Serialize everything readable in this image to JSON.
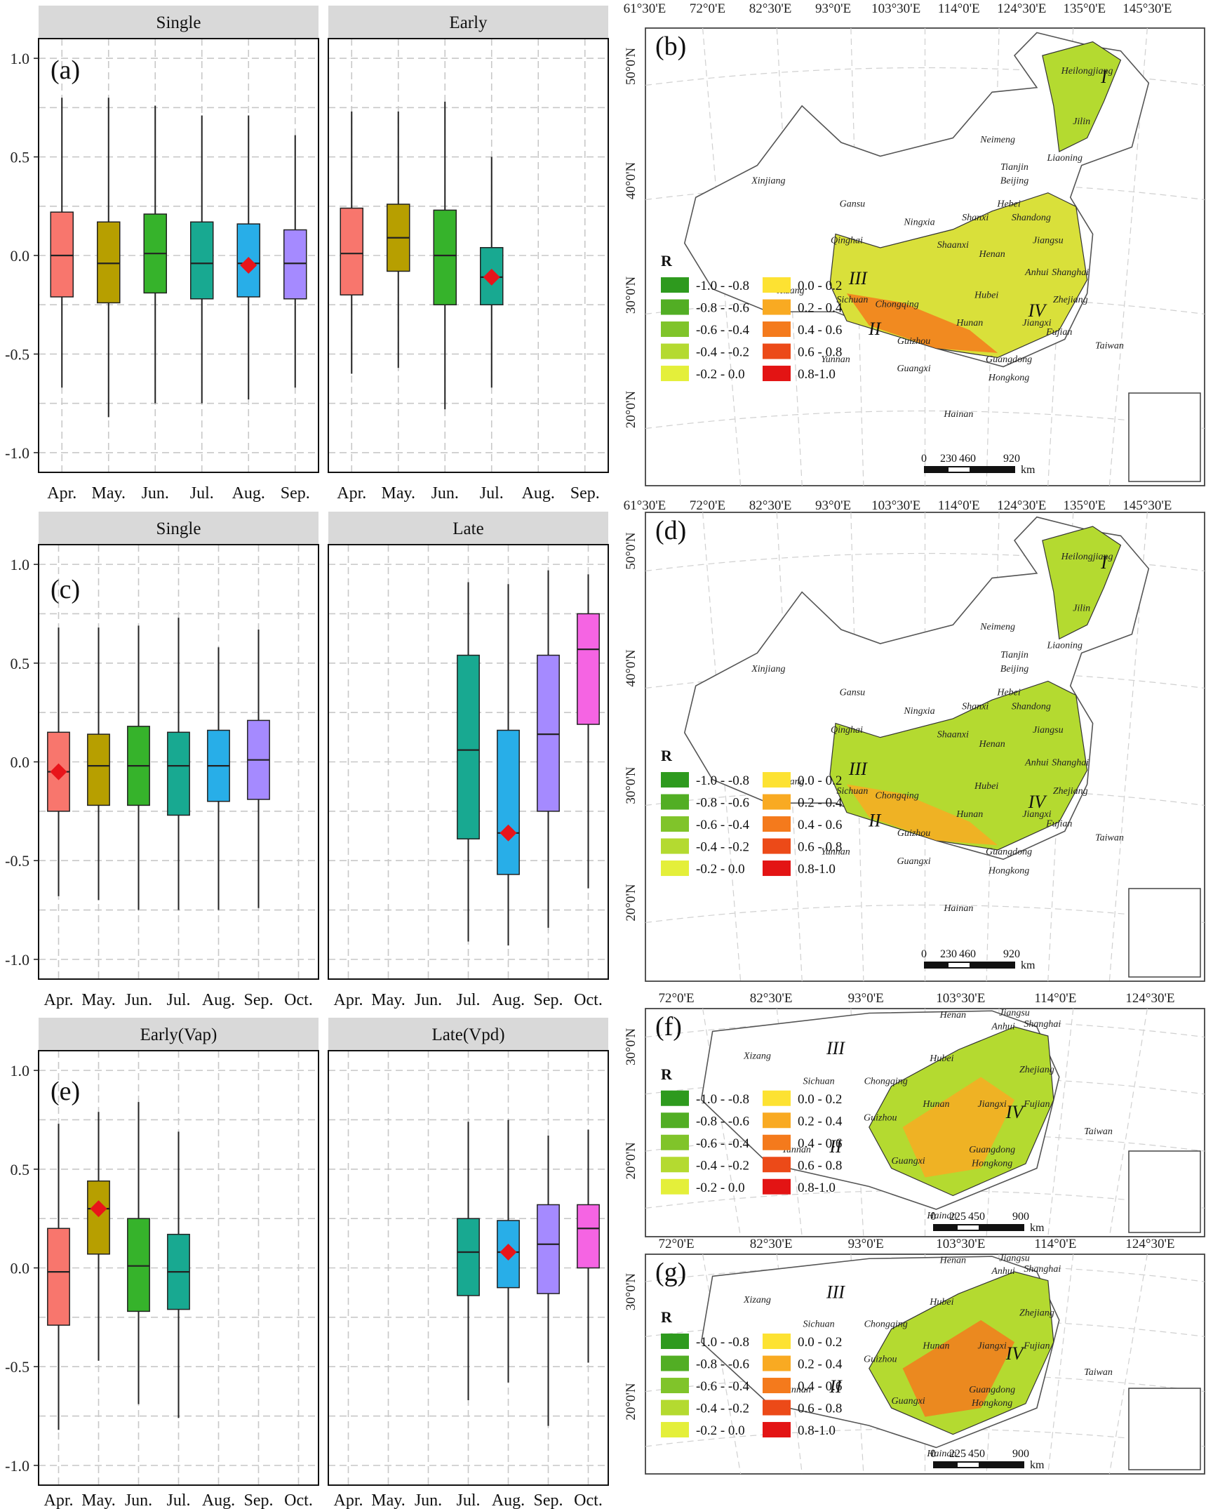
{
  "months_ab": [
    "Apr.",
    "May.",
    "Jun.",
    "Jul.",
    "Aug.",
    "Sep."
  ],
  "months_cdef": [
    "Apr.",
    "May.",
    "Jun.",
    "Jul.",
    "Aug.",
    "Sep.",
    "Oct."
  ],
  "y_ticks": [
    "1.0",
    "0.5",
    "0.0",
    "-0.5",
    "-1.0"
  ],
  "colors": {
    "Apr.": "#f8766d",
    "May.": "#b79f00",
    "Jun.": "#36b32b",
    "Jul.": "#18a991",
    "Aug.": "#28aee8",
    "Sep.": "#a58aff",
    "Oct.": "#f564e3",
    "highlight": "#e8141a",
    "strip": "#d9d9d9",
    "grid": "#c8c8c8"
  },
  "chart_data": [
    {
      "panel": "(a)",
      "type": "boxplot",
      "ylim": [
        -1.1,
        1.1
      ],
      "facets": [
        {
          "title": "Single",
          "categories": [
            "Apr.",
            "May.",
            "Jun.",
            "Jul.",
            "Aug.",
            "Sep."
          ],
          "boxes": [
            {
              "cat": "Apr.",
              "min": -0.67,
              "q1": -0.21,
              "median": 0.0,
              "q3": 0.22,
              "max": 0.8
            },
            {
              "cat": "May.",
              "min": -0.82,
              "q1": -0.24,
              "median": -0.04,
              "q3": 0.17,
              "max": 0.8
            },
            {
              "cat": "Jun.",
              "min": -0.75,
              "q1": -0.19,
              "median": 0.01,
              "q3": 0.21,
              "max": 0.76
            },
            {
              "cat": "Jul.",
              "min": -0.75,
              "q1": -0.22,
              "median": -0.04,
              "q3": 0.17,
              "max": 0.71
            },
            {
              "cat": "Aug.",
              "min": -0.73,
              "q1": -0.21,
              "median": -0.04,
              "q3": 0.16,
              "max": 0.71,
              "highlight": -0.05
            },
            {
              "cat": "Sep.",
              "min": -0.67,
              "q1": -0.22,
              "median": -0.04,
              "q3": 0.13,
              "max": 0.61
            }
          ]
        },
        {
          "title": "Early",
          "categories": [
            "Apr.",
            "May.",
            "Jun.",
            "Jul.",
            "Aug.",
            "Sep."
          ],
          "boxes": [
            {
              "cat": "Apr.",
              "min": -0.6,
              "q1": -0.2,
              "median": 0.01,
              "q3": 0.24,
              "max": 0.73
            },
            {
              "cat": "May.",
              "min": -0.57,
              "q1": -0.08,
              "median": 0.09,
              "q3": 0.26,
              "max": 0.73
            },
            {
              "cat": "Jun.",
              "min": -0.78,
              "q1": -0.25,
              "median": 0.0,
              "q3": 0.23,
              "max": 0.78
            },
            {
              "cat": "Jul.",
              "min": -0.67,
              "q1": -0.25,
              "median": -0.11,
              "q3": 0.04,
              "max": 0.5,
              "highlight": -0.11
            }
          ]
        }
      ]
    },
    {
      "panel": "(c)",
      "type": "boxplot",
      "ylim": [
        -1.1,
        1.1
      ],
      "facets": [
        {
          "title": "Single",
          "categories": [
            "Apr.",
            "May.",
            "Jun.",
            "Jul.",
            "Aug.",
            "Sep.",
            "Oct."
          ],
          "boxes": [
            {
              "cat": "Apr.",
              "min": -0.68,
              "q1": -0.25,
              "median": -0.05,
              "q3": 0.15,
              "max": 0.68,
              "highlight": -0.05
            },
            {
              "cat": "May.",
              "min": -0.7,
              "q1": -0.22,
              "median": -0.02,
              "q3": 0.14,
              "max": 0.68
            },
            {
              "cat": "Jun.",
              "min": -0.75,
              "q1": -0.22,
              "median": -0.02,
              "q3": 0.18,
              "max": 0.69
            },
            {
              "cat": "Jul.",
              "min": -0.75,
              "q1": -0.27,
              "median": -0.02,
              "q3": 0.15,
              "max": 0.73
            },
            {
              "cat": "Aug.",
              "min": -0.75,
              "q1": -0.2,
              "median": -0.02,
              "q3": 0.16,
              "max": 0.58
            },
            {
              "cat": "Sep.",
              "min": -0.74,
              "q1": -0.19,
              "median": 0.01,
              "q3": 0.21,
              "max": 0.67
            }
          ]
        },
        {
          "title": "Late",
          "categories": [
            "Apr.",
            "May.",
            "Jun.",
            "Jul.",
            "Aug.",
            "Sep.",
            "Oct."
          ],
          "boxes": [
            {
              "cat": "Jul.",
              "min": -0.91,
              "q1": -0.39,
              "median": 0.06,
              "q3": 0.54,
              "max": 0.91
            },
            {
              "cat": "Aug.",
              "min": -0.93,
              "q1": -0.57,
              "median": -0.36,
              "q3": 0.16,
              "max": 0.9,
              "highlight": -0.36
            },
            {
              "cat": "Sep.",
              "min": -0.84,
              "q1": -0.25,
              "median": 0.14,
              "q3": 0.54,
              "max": 0.97
            },
            {
              "cat": "Oct.",
              "min": -0.64,
              "q1": 0.19,
              "median": 0.57,
              "q3": 0.75,
              "max": 0.95
            }
          ]
        }
      ]
    },
    {
      "panel": "(e)",
      "type": "boxplot",
      "ylim": [
        -1.1,
        1.1
      ],
      "facets": [
        {
          "title": "Early(Vap)",
          "categories": [
            "Apr.",
            "May.",
            "Jun.",
            "Jul.",
            "Aug.",
            "Sep.",
            "Oct."
          ],
          "boxes": [
            {
              "cat": "Apr.",
              "min": -0.82,
              "q1": -0.29,
              "median": -0.02,
              "q3": 0.2,
              "max": 0.73
            },
            {
              "cat": "May.",
              "min": -0.47,
              "q1": 0.07,
              "median": 0.3,
              "q3": 0.44,
              "max": 0.79,
              "highlight": 0.3
            },
            {
              "cat": "Jun.",
              "min": -0.69,
              "q1": -0.22,
              "median": 0.01,
              "q3": 0.25,
              "max": 0.84
            },
            {
              "cat": "Jul.",
              "min": -0.76,
              "q1": -0.21,
              "median": -0.02,
              "q3": 0.17,
              "max": 0.69
            }
          ]
        },
        {
          "title": "Late(Vpd)",
          "categories": [
            "Apr.",
            "May.",
            "Jun.",
            "Jul.",
            "Aug.",
            "Sep.",
            "Oct."
          ],
          "boxes": [
            {
              "cat": "Jul.",
              "min": -0.67,
              "q1": -0.14,
              "median": 0.08,
              "q3": 0.25,
              "max": 0.74
            },
            {
              "cat": "Aug.",
              "min": -0.58,
              "q1": -0.1,
              "median": 0.08,
              "q3": 0.24,
              "max": 0.75,
              "highlight": 0.08
            },
            {
              "cat": "Sep.",
              "min": -0.8,
              "q1": -0.13,
              "median": 0.12,
              "q3": 0.32,
              "max": 0.67
            },
            {
              "cat": "Oct.",
              "min": -0.48,
              "q1": 0.0,
              "median": 0.2,
              "q3": 0.32,
              "max": 0.7
            }
          ]
        }
      ]
    }
  ],
  "maps": [
    {
      "label": "(b)",
      "top_lon": [
        "61°30'E",
        "72°0'E",
        "82°30'E",
        "93°0'E",
        "103°30'E",
        "114°0'E",
        "124°30'E",
        "135°0'E",
        "145°30'E"
      ],
      "lat": [
        "50°0'N",
        "40°0'N",
        "30°0'N",
        "20°0'N"
      ],
      "scale": [
        "0",
        "230",
        "460",
        "920"
      ],
      "scale_unit": "km"
    },
    {
      "label": "(d)",
      "top_lon": [
        "61°30'E",
        "72°0'E",
        "82°30'E",
        "93°0'E",
        "103°30'E",
        "114°0'E",
        "124°30'E",
        "135°0'E",
        "145°30'E"
      ],
      "lat": [
        "50°0'N",
        "40°0'N",
        "30°0'N",
        "20°0'N"
      ],
      "scale": [
        "0",
        "230",
        "460",
        "920"
      ],
      "scale_unit": "km"
    },
    {
      "label": "(f)",
      "top_lon": [
        "72°0'E",
        "82°30'E",
        "93°0'E",
        "103°30'E",
        "114°0'E",
        "124°30'E"
      ],
      "lat": [
        "30°0'N",
        "20°0'N"
      ],
      "scale": [
        "0",
        "225",
        "450",
        "900"
      ],
      "scale_unit": "km"
    },
    {
      "label": "(g)",
      "top_lon": [
        "72°0'E",
        "82°30'E",
        "93°0'E",
        "103°30'E",
        "114°0'E",
        "124°30'E"
      ],
      "lat": [
        "30°0'N",
        "20°0'N"
      ],
      "scale": [
        "0",
        "225",
        "450",
        "900"
      ],
      "scale_unit": "km"
    }
  ],
  "provinces_full": [
    "Heilongjiang",
    "Jilin",
    "Liaoning",
    "Neimeng",
    "Tianjin",
    "Beijing",
    "Xinjiang",
    "Gansu",
    "Hebei",
    "Ningxia",
    "Shanxi",
    "Shandong",
    "Qinghai",
    "Shaanxi",
    "Henan",
    "Jiangsu",
    "Anhui",
    "Shanghai",
    "Xizang",
    "Sichuan",
    "Chongqing",
    "Hubei",
    "Zhejiang",
    "Hunan",
    "Jiangxi",
    "Guizhou",
    "Fujian",
    "Yunnan",
    "Guangxi",
    "Guangdong",
    "Hongkong",
    "Taiwan",
    "Hainan"
  ],
  "provinces_south": [
    "Henan",
    "Jiangsu",
    "Anhui",
    "Shanghai",
    "Xizang",
    "Sichuan",
    "Chongqing",
    "Hubei",
    "Zhejiang",
    "Hunan",
    "Jiangxi",
    "Guizhou",
    "Fujian",
    "Yunnan",
    "Guangxi",
    "Guangdong",
    "Hongkong",
    "Taiwan",
    "Hainan"
  ],
  "regions_full": [
    "I",
    "II",
    "III",
    "IV"
  ],
  "regions_south": [
    "II",
    "III",
    "IV"
  ],
  "legend": {
    "title": "R",
    "items": [
      {
        "label": "-1.0 - -0.8",
        "color": "#2e9a1e"
      },
      {
        "label": "-0.8 - -0.6",
        "color": "#52ae24"
      },
      {
        "label": "-0.6 - -0.4",
        "color": "#80c42a"
      },
      {
        "label": "-0.4 - -0.2",
        "color": "#b4da30"
      },
      {
        "label": "-0.2 - 0.0",
        "color": "#e4ef3a"
      },
      {
        "label": "0.0 - 0.2",
        "color": "#fde232"
      },
      {
        "label": "0.2 - 0.4",
        "color": "#f9aa22"
      },
      {
        "label": "0.4 - 0.6",
        "color": "#f47a1c"
      },
      {
        "label": "0.6 - 0.8",
        "color": "#ec4a18"
      },
      {
        "label": "0.8-1.0",
        "color": "#e31414"
      }
    ]
  }
}
